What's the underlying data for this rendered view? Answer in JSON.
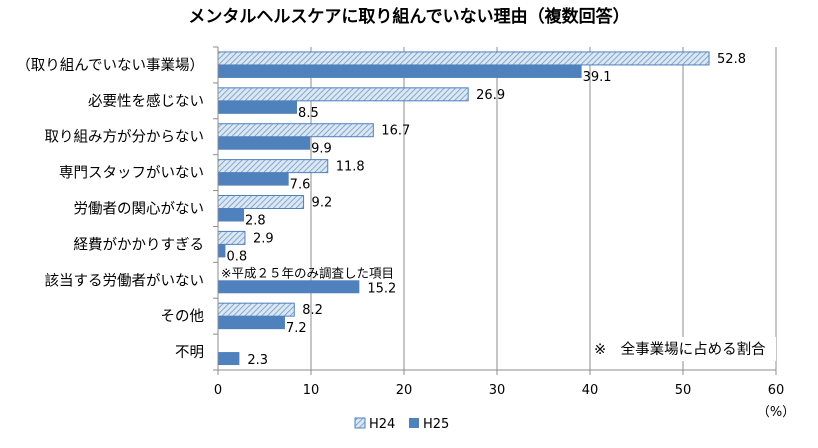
{
  "chart_data": {
    "type": "bar",
    "orientation": "horizontal",
    "title": "メンタルヘルスケアに取り組んでいない理由（複数回答）",
    "xlabel": "",
    "unit_label": "（%）",
    "xlim": [
      0,
      60
    ],
    "xticks": [
      0,
      10,
      20,
      30,
      40,
      50,
      60
    ],
    "grid": true,
    "legend_position": "bottom",
    "categories": [
      "（取り組んでいない事業場）",
      "必要性を感じない",
      "取り組み方が分からない",
      "専門スタッフがいない",
      "労働者の関心がない",
      "経費がかかりすぎる",
      "該当する労働者がいない",
      "その他",
      "不明"
    ],
    "series": [
      {
        "name": "H24",
        "style": "hatched",
        "color": "#4f81bd",
        "fill": "#dbe7f3",
        "values": [
          52.8,
          26.9,
          16.7,
          11.8,
          9.2,
          2.9,
          null,
          8.2,
          null
        ]
      },
      {
        "name": "H25",
        "style": "solid",
        "color": "#4f81bd",
        "values": [
          39.1,
          8.5,
          9.9,
          7.6,
          2.8,
          0.8,
          15.2,
          7.2,
          2.3
        ]
      }
    ],
    "annotations": [
      {
        "text": "※平成２５年のみ調査した項目",
        "category": "該当する労働者がいない"
      },
      {
        "text": "※　全事業場に占める割合",
        "position": "bottom-right"
      }
    ]
  }
}
